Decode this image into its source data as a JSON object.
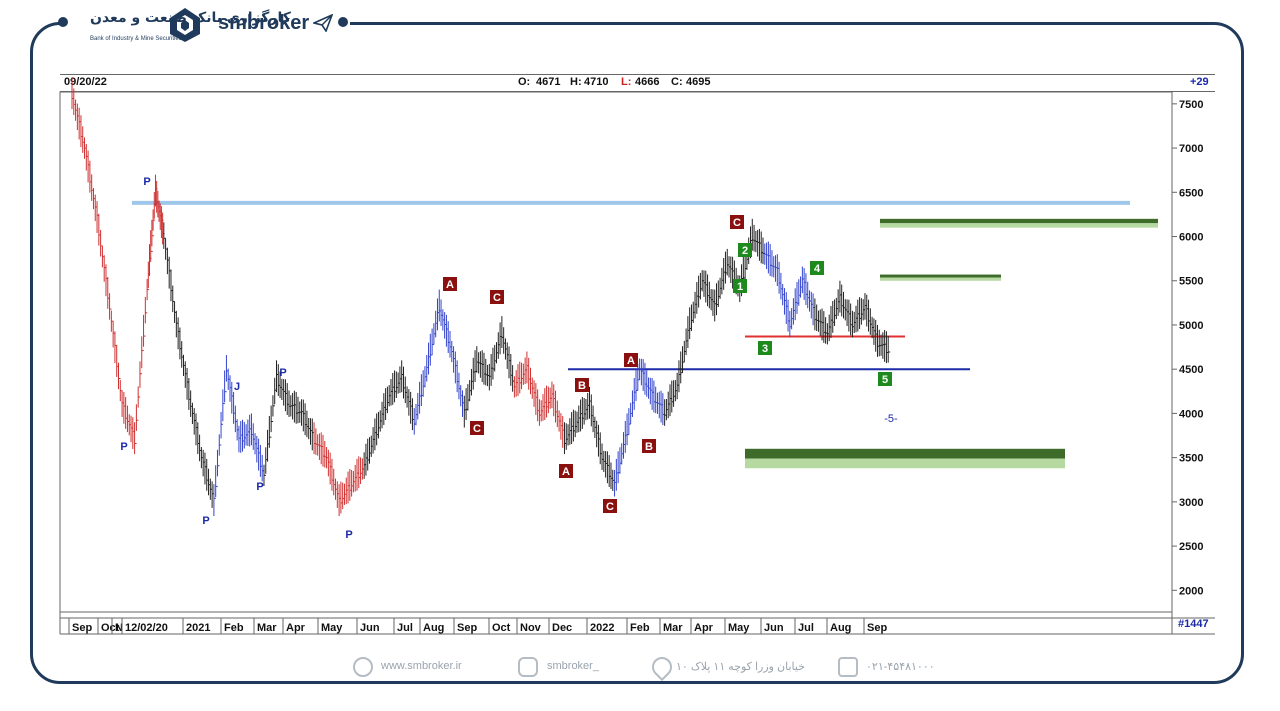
{
  "brand": {
    "logo_text": "کارگزاری بانک صنعت و معدن",
    "logo_sub": "Bank of Industry & Mine Securities",
    "name": "smbroker"
  },
  "header": {
    "date": "09/20/22",
    "open_label": "O:",
    "open": "4671",
    "high_label": "H:",
    "high": "4710",
    "low_label": "L:",
    "low": "4666",
    "close_label": "C:",
    "close": "4695",
    "change": "+29"
  },
  "footer": {
    "bar_count": "#1447",
    "website": "www.smbroker.ir",
    "instagram": "smbroker_",
    "address": "خیابان وزرا کوچه ۱۱ پلاک ۱۰",
    "phone": "۰۲۱-۴۵۴۸۱۰۰۰"
  },
  "chart_data": {
    "type": "bar",
    "title": "",
    "xlabel": "",
    "ylabel": "",
    "ylim": [
      1800,
      7600
    ],
    "yticks": [
      2000,
      2500,
      3000,
      3500,
      4000,
      4500,
      5000,
      5500,
      6000,
      6500,
      7000,
      7500
    ],
    "x_labels": [
      "Sep",
      "Oct",
      "N",
      "12/02/20",
      "2021",
      "Feb",
      "Mar",
      "Apr",
      "May",
      "Jun",
      "Jul",
      "Aug",
      "Sep",
      "Oct",
      "Nov",
      "Dec",
      "2022",
      "Feb",
      "Mar",
      "Apr",
      "May",
      "Jun",
      "Jul",
      "Aug",
      "Sep"
    ],
    "price_path": [
      [
        0,
        7600
      ],
      [
        3,
        7000
      ],
      [
        6,
        6200
      ],
      [
        9,
        5200
      ],
      [
        12,
        4100
      ],
      [
        15,
        3700
      ],
      [
        18,
        5400
      ],
      [
        20,
        6500
      ],
      [
        22,
        6000
      ],
      [
        25,
        5000
      ],
      [
        28,
        4200
      ],
      [
        31,
        3500
      ],
      [
        34,
        3000
      ],
      [
        37,
        4500
      ],
      [
        40,
        3700
      ],
      [
        43,
        3800
      ],
      [
        46,
        3300
      ],
      [
        49,
        4400
      ],
      [
        52,
        4100
      ],
      [
        55,
        4000
      ],
      [
        58,
        3700
      ],
      [
        61,
        3500
      ],
      [
        64,
        3000
      ],
      [
        67,
        3200
      ],
      [
        70,
        3400
      ],
      [
        73,
        3800
      ],
      [
        76,
        4200
      ],
      [
        79,
        4400
      ],
      [
        82,
        3900
      ],
      [
        85,
        4500
      ],
      [
        88,
        5200
      ],
      [
        91,
        4700
      ],
      [
        94,
        4000
      ],
      [
        97,
        4600
      ],
      [
        100,
        4400
      ],
      [
        103,
        4900
      ],
      [
        106,
        4300
      ],
      [
        109,
        4500
      ],
      [
        112,
        4000
      ],
      [
        115,
        4200
      ],
      [
        118,
        3700
      ],
      [
        121,
        3900
      ],
      [
        124,
        4100
      ],
      [
        127,
        3500
      ],
      [
        130,
        3200
      ],
      [
        133,
        3800
      ],
      [
        136,
        4500
      ],
      [
        139,
        4200
      ],
      [
        142,
        4000
      ],
      [
        145,
        4300
      ],
      [
        148,
        5000
      ],
      [
        151,
        5500
      ],
      [
        154,
        5200
      ],
      [
        157,
        5700
      ],
      [
        160,
        5400
      ],
      [
        163,
        6000
      ],
      [
        166,
        5800
      ],
      [
        169,
        5600
      ],
      [
        172,
        5000
      ],
      [
        175,
        5500
      ],
      [
        178,
        5100
      ],
      [
        181,
        4900
      ],
      [
        184,
        5300
      ],
      [
        187,
        5000
      ],
      [
        190,
        5200
      ],
      [
        193,
        4800
      ],
      [
        196,
        4700
      ]
    ],
    "horizontal_lines": [
      {
        "price": 6380,
        "color": "#9fc7ea"
      },
      {
        "price": 4500,
        "color": "#1b2aa8"
      },
      {
        "price": 4870,
        "color": "#e03030"
      }
    ],
    "zones": [
      {
        "price_top": 6200,
        "price_bottom": 6100,
        "color": "#3e6b2a"
      },
      {
        "price_top": 5570,
        "price_bottom": 5500,
        "color": "#3e6b2a"
      },
      {
        "price_top": 3600,
        "price_bottom": 3380,
        "color": "#3e6b2a"
      }
    ],
    "wave_labels": [
      "P",
      "P",
      "P",
      "J",
      "P",
      "P",
      "P",
      "A",
      "B",
      "C",
      "C",
      "A",
      "B",
      "C",
      "A",
      "B",
      "C",
      "1",
      "2",
      "3",
      "4",
      "5"
    ],
    "annotation": "-5-"
  }
}
